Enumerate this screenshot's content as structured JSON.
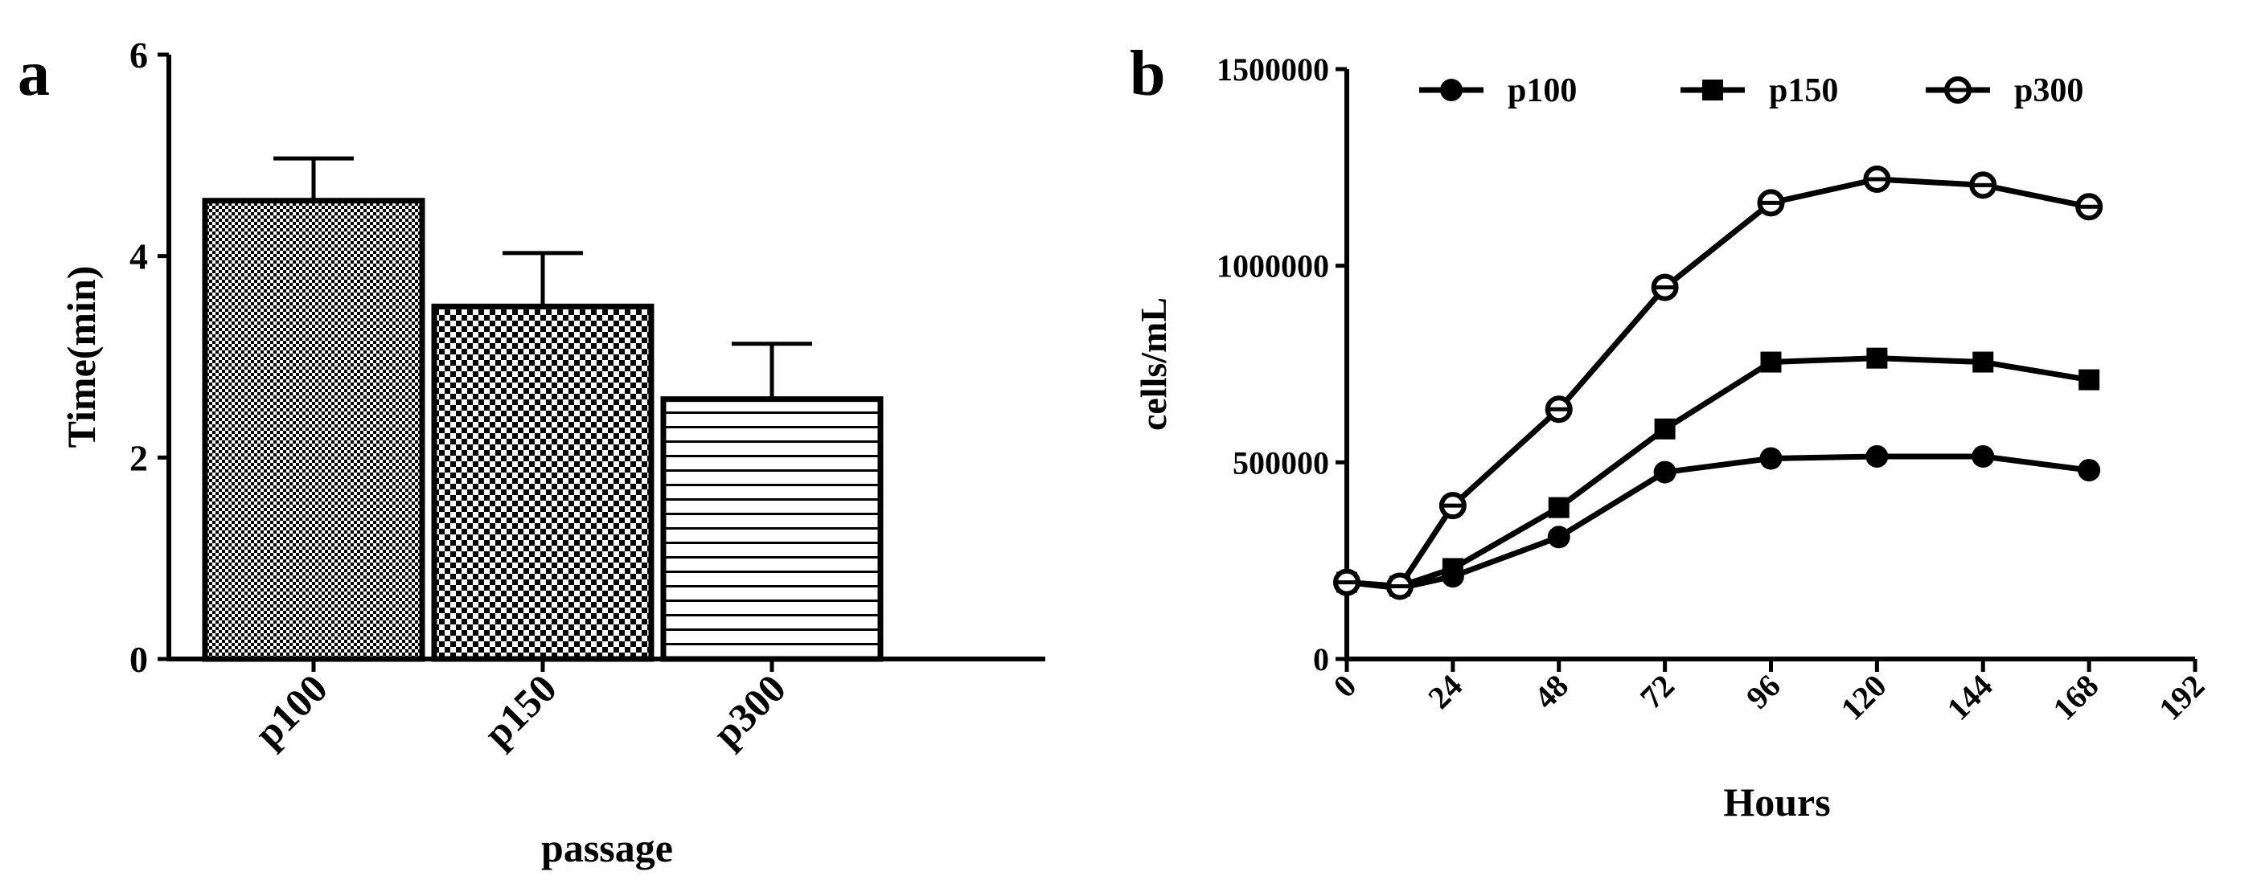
{
  "panels": {
    "a": {
      "letter": "a"
    },
    "b": {
      "letter": "b"
    }
  },
  "chart_data": [
    {
      "type": "bar",
      "panel": "a",
      "title": "",
      "xlabel": "passage",
      "ylabel": "Time(min)",
      "ylim": [
        0,
        6
      ],
      "yticks": [
        0,
        2,
        4,
        6
      ],
      "categories": [
        "p100",
        "p150",
        "p300"
      ],
      "values": [
        4.55,
        3.5,
        2.58
      ],
      "errors": [
        0.42,
        0.53,
        0.55
      ],
      "patterns": [
        "fine-checker",
        "coarse-checker",
        "horizontal-lines"
      ]
    },
    {
      "type": "line",
      "panel": "b",
      "title": "",
      "xlabel": "Hours",
      "ylabel": "cells/mL",
      "xlim": [
        0,
        192
      ],
      "ylim": [
        0,
        1500000
      ],
      "xticks": [
        0,
        24,
        48,
        72,
        96,
        120,
        144,
        168,
        192
      ],
      "yticks": [
        0,
        500000,
        1000000,
        1500000
      ],
      "legend_position": "top",
      "series": [
        {
          "name": "p100",
          "marker": "filled-circle",
          "x": [
            0,
            12,
            24,
            48,
            72,
            96,
            120,
            144,
            168
          ],
          "values": [
            195000,
            180000,
            210000,
            310000,
            475000,
            510000,
            515000,
            515000,
            480000
          ]
        },
        {
          "name": "p150",
          "marker": "filled-square",
          "x": [
            0,
            12,
            24,
            48,
            72,
            96,
            120,
            144,
            168
          ],
          "values": [
            195000,
            185000,
            230000,
            385000,
            585000,
            755000,
            765000,
            755000,
            710000
          ]
        },
        {
          "name": "p300",
          "marker": "open-circle",
          "x": [
            0,
            12,
            24,
            48,
            72,
            96,
            120,
            144,
            168
          ],
          "values": [
            195000,
            185000,
            390000,
            635000,
            945000,
            1160000,
            1220000,
            1205000,
            1150000
          ]
        }
      ]
    }
  ]
}
